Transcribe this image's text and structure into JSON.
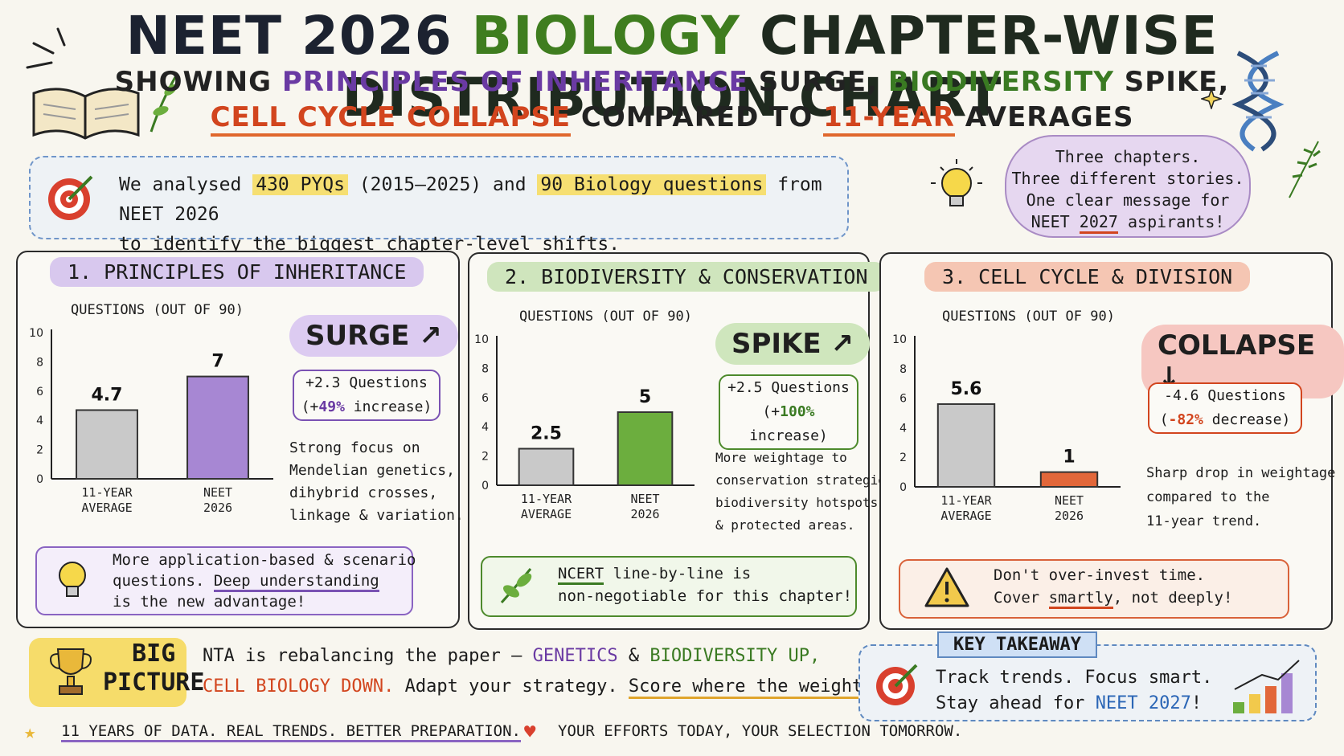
{
  "title": {
    "part1": "NEET 2026",
    "part2": "BIOLOGY",
    "part3": "CHAPTER-WISE DISTRIBUTION CHART"
  },
  "subtitle": {
    "l1_a": "SHOWING",
    "l1_b": "PRINCIPLES OF INHERITANCE",
    "l1_c": "SURGE,",
    "l1_d": "BIODIVERSITY",
    "l1_e": "SPIKE,",
    "l2_a": "CELL CYCLE COLLAPSE",
    "l2_b": "COMPARED TO",
    "l2_c": "11-YEAR",
    "l2_d": "AVERAGES"
  },
  "intro": {
    "a": "We analysed",
    "b": "430 PYQs",
    "c": "(2015–2025) and",
    "d": "90 Biology questions",
    "e": "from NEET 2026",
    "f": "to identify the biggest chapter-level shifts."
  },
  "cloud": {
    "l1": "Three chapters.",
    "l2": "Three different stories.",
    "l3": "One clear message for",
    "l4a": "NEET",
    "l4b": "2027",
    "l4c": "aspirants!"
  },
  "panels": [
    {
      "title": "1. PRINCIPLES OF INHERITANCE",
      "axis_label": "QUESTIONS (OUT OF 90)",
      "badge": "SURGE",
      "stat_l1": "+2.3 Questions",
      "stat_open": "(+",
      "stat_pct": "49%",
      "stat_word": " increase)",
      "desc": [
        "Strong focus on",
        "Mendelian genetics,",
        "dihybrid crosses,",
        "linkage & variation."
      ],
      "tip_l1": "More application-based & scenario",
      "tip_l2a": "questions.",
      "tip_l2b": "Deep understanding",
      "tip_l3": "is the new advantage!"
    },
    {
      "title": "2. BIODIVERSITY & CONSERVATION",
      "axis_label": "QUESTIONS (OUT OF 90)",
      "badge": "SPIKE",
      "stat_l1": "+2.5 Questions",
      "stat_open": "(+",
      "stat_pct": "100%",
      "stat_word": " increase)",
      "desc": [
        "More weightage to",
        "conservation strategies,",
        "biodiversity hotspots,",
        "& protected areas."
      ],
      "tip_l1a": "NCERT",
      "tip_l1b": " line-by-line is",
      "tip_l2": "non-negotiable for this chapter!"
    },
    {
      "title": "3. CELL CYCLE & DIVISION",
      "axis_label": "QUESTIONS (OUT OF 90)",
      "badge": "COLLAPSE",
      "stat_l1": "-4.6 Questions",
      "stat_open": "(",
      "stat_pct": "-82%",
      "stat_word": " decrease)",
      "desc": [
        "Sharp drop in weightage",
        "compared to the",
        "11-year trend."
      ],
      "tip_l1": "Don't over-invest time.",
      "tip_l2a": "Cover ",
      "tip_l2b": "smartly",
      "tip_l2c": ", not deeply!"
    }
  ],
  "chart_data": [
    {
      "type": "bar",
      "title": "1. PRINCIPLES OF INHERITANCE",
      "ylabel": "QUESTIONS (OUT OF 90)",
      "ylim": [
        0,
        10
      ],
      "yticks": [
        "0",
        "2",
        "4",
        "6",
        "8",
        "10"
      ],
      "categories": [
        "11-YEAR AVERAGE",
        "NEET 2026"
      ],
      "values": [
        4.7,
        7
      ],
      "colors": [
        "#c9c9c9",
        "#a787d3"
      ],
      "grid": false
    },
    {
      "type": "bar",
      "title": "2. BIODIVERSITY & CONSERVATION",
      "ylabel": "QUESTIONS (OUT OF 90)",
      "ylim": [
        0,
        10
      ],
      "yticks": [
        "0",
        "2",
        "4",
        "6",
        "8",
        "10"
      ],
      "categories": [
        "11-YEAR AVERAGE",
        "NEET 2026"
      ],
      "values": [
        2.5,
        5
      ],
      "colors": [
        "#c9c9c9",
        "#6cae3e"
      ],
      "grid": false
    },
    {
      "type": "bar",
      "title": "3. CELL CYCLE & DIVISION",
      "ylabel": "QUESTIONS (OUT OF 90)",
      "ylim": [
        0,
        10
      ],
      "yticks": [
        "0",
        "2",
        "4",
        "6",
        "8",
        "10"
      ],
      "categories": [
        "11-YEAR AVERAGE",
        "NEET 2026"
      ],
      "values": [
        5.6,
        1
      ],
      "colors": [
        "#c9c9c9",
        "#e2673a"
      ],
      "grid": false
    }
  ],
  "bigpicture": {
    "title_l1": "BIG",
    "title_l2": "PICTURE",
    "l1a": "NTA is rebalancing the paper —",
    "l1b": "GENETICS",
    "l1c": "&",
    "l1d": "BIODIVERSITY UP,",
    "l2a": "CELL BIOLOGY DOWN.",
    "l2b": "Adapt your strategy.",
    "l2c": "Score where the weightage is!"
  },
  "takeaway": {
    "label": "KEY TAKEAWAY",
    "l1": "Track trends. Focus smart.",
    "l2a": "Stay ahead for",
    "l2b": "NEET 2027",
    "l2c": "!"
  },
  "footer": {
    "left": "11 YEARS OF DATA. REAL TRENDS. BETTER PREPARATION.",
    "right": "YOUR EFFORTS TODAY, YOUR SELECTION TOMORROW."
  },
  "colors": {
    "purple": "#6a3aa3",
    "green": "#3a7a22",
    "orange": "#d2451e",
    "highlight": "#f6df72"
  }
}
